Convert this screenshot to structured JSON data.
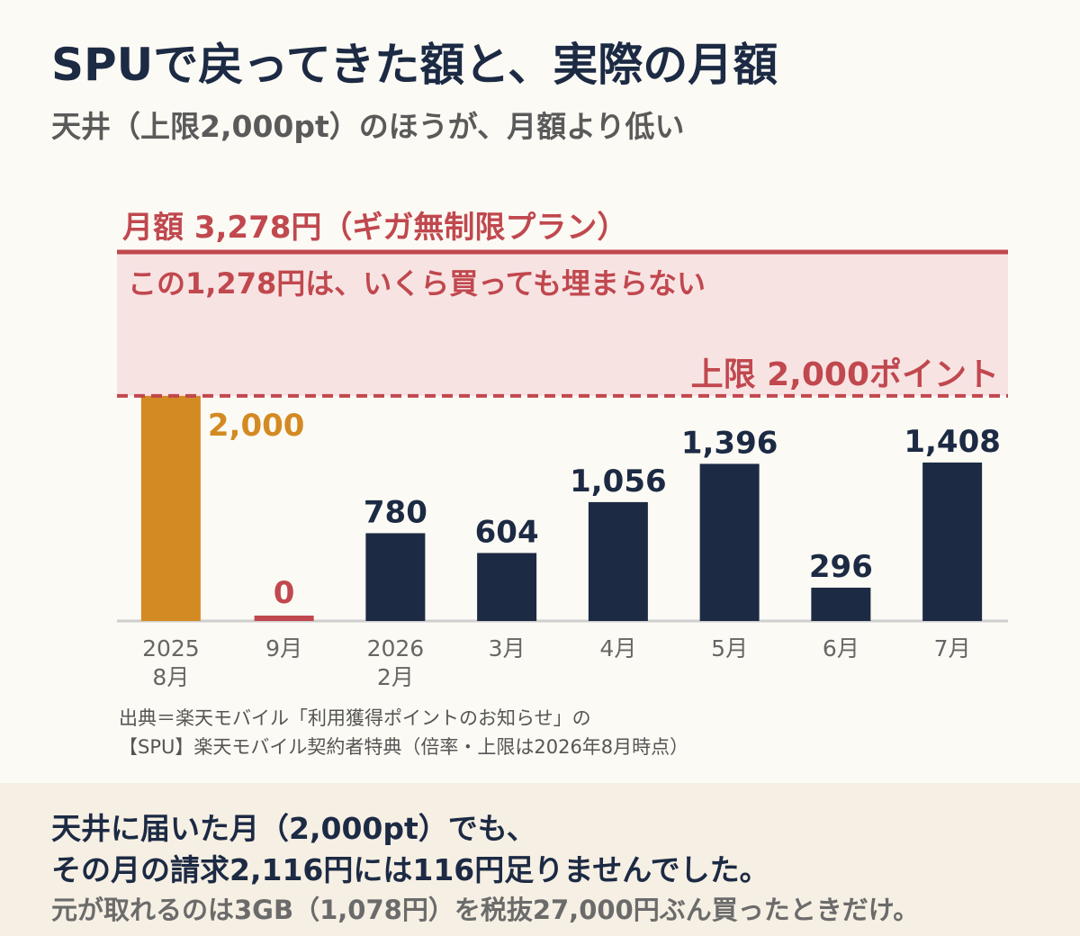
{
  "title": "SPUで戻ってきた額と、実際の月額",
  "subtitle": "天井（上限2,000pt）のほうが、月額より低い",
  "colors": {
    "navy": "#1c2a44",
    "orange": "#d38a22",
    "red": "#c0484e",
    "band": "#f8e3e3",
    "axis": "#cfcfcf"
  },
  "chart_data": {
    "type": "bar",
    "categories": [
      [
        "2025",
        "8月"
      ],
      [
        "9月"
      ],
      [
        "2026",
        "2月"
      ],
      [
        "3月"
      ],
      [
        "4月"
      ],
      [
        "5月"
      ],
      [
        "6月"
      ],
      [
        "7月"
      ]
    ],
    "values": [
      2000,
      0,
      780,
      604,
      1056,
      1396,
      296,
      1408
    ],
    "value_labels": [
      "2,000",
      "0",
      "780",
      "604",
      "1,056",
      "1,396",
      "296",
      "1,408"
    ],
    "bar_colors": [
      "orange",
      "red",
      "navy",
      "navy",
      "navy",
      "navy",
      "navy",
      "navy"
    ],
    "ylim": [
      0,
      3278
    ],
    "reference_lines": [
      {
        "value": 3278,
        "label": "月額 3,278円（ギガ無制限プラン）",
        "style": "solid"
      },
      {
        "value": 2000,
        "label": "上限 2,000ポイント",
        "style": "dashed"
      }
    ],
    "band": {
      "from": 2000,
      "to": 3278,
      "label": "この1,278円は、いくら買っても埋まらない"
    },
    "xlabel": "",
    "ylabel": ""
  },
  "source_lines": [
    "出典＝楽天モバイル「利用獲得ポイントのお知らせ」の",
    "【SPU】楽天モバイル契約者特典（倍率・上限は2026年8月時点）"
  ],
  "footer": {
    "line1": "天井に届いた月（2,000pt）でも、",
    "line2": "その月の請求2,116円には116円足りませんでした。",
    "line3": "元が取れるのは3GB（1,078円）を税抜27,000円ぶん買ったときだけ。"
  }
}
